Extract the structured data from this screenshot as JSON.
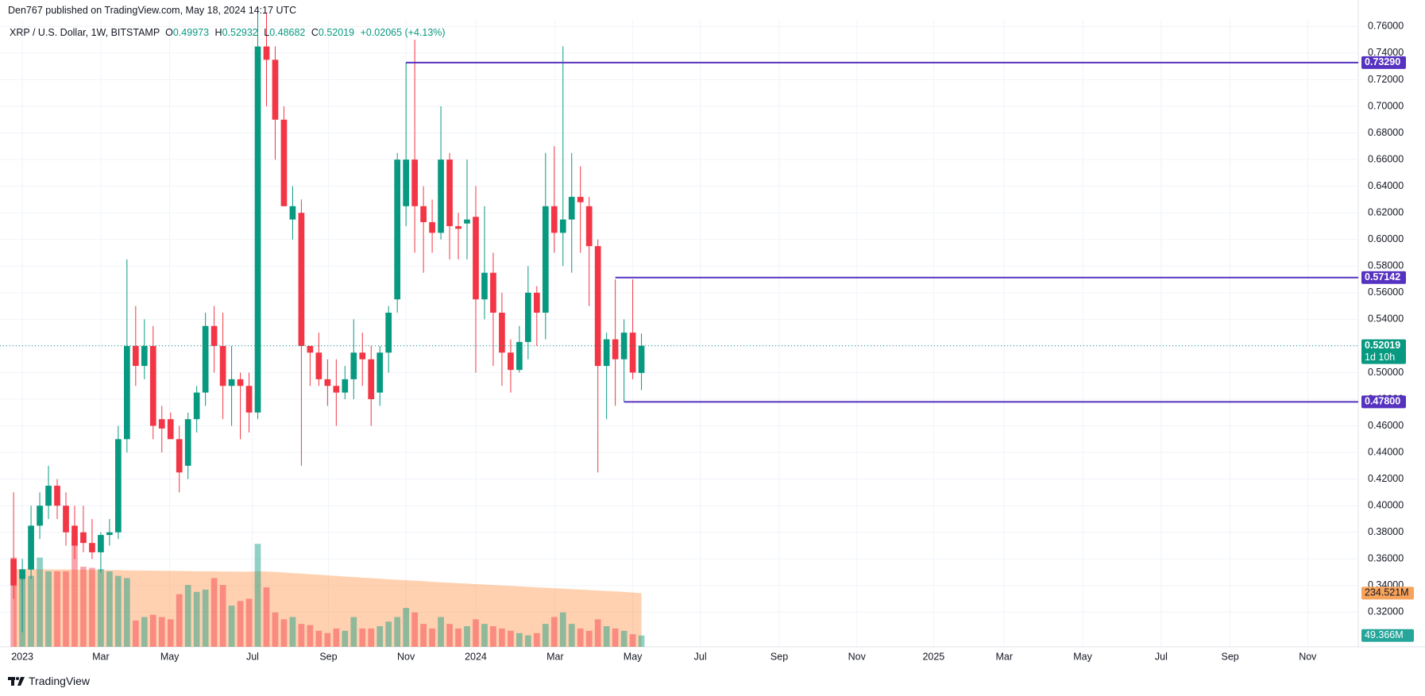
{
  "header": "Den767 published on TradingView.com, May 18, 2024 14:17 UTC",
  "footer": "TradingView",
  "chart_data": {
    "type": "candlestick",
    "symbol": "XRP / U.S. Dollar, 1W, BITSTAMP",
    "legend_keys": [
      "O",
      "H",
      "L",
      "C"
    ],
    "change": "+0.02065 (+4.13%)",
    "countdown": "1d 10h",
    "up_color": "#089981",
    "down_color": "#f23645",
    "level_color": "#5632c0",
    "grid": true,
    "xlim": [
      -1.56,
      154.2
    ],
    "xticks": [
      {
        "value": 1,
        "label": "2023"
      },
      {
        "value": 10,
        "label": "Mar"
      },
      {
        "value": 17.9,
        "label": "May"
      },
      {
        "value": 27.4,
        "label": "Jul"
      },
      {
        "value": 36.1,
        "label": "Sep"
      },
      {
        "value": 45,
        "label": "Nov"
      },
      {
        "value": 53,
        "label": "2024"
      },
      {
        "value": 62.1,
        "label": "Mar"
      },
      {
        "value": 71,
        "label": "May"
      },
      {
        "value": 78.75,
        "label": "Jul"
      },
      {
        "value": 87.8,
        "label": "Sep"
      },
      {
        "value": 96.7,
        "label": "Nov"
      },
      {
        "value": 105.5,
        "label": "2025"
      },
      {
        "value": 113.6,
        "label": "Mar"
      },
      {
        "value": 122.6,
        "label": "May"
      },
      {
        "value": 131.6,
        "label": "Jul"
      },
      {
        "value": 139.5,
        "label": "Sep"
      },
      {
        "value": 148.4,
        "label": "Nov"
      }
    ],
    "ylim": [
      0.294,
      0.765
    ],
    "yticks": [
      {
        "value": 0.32,
        "label": "0.32000"
      },
      {
        "value": 0.34,
        "label": "0.34000"
      },
      {
        "value": 0.36,
        "label": "0.36000"
      },
      {
        "value": 0.38,
        "label": "0.38000"
      },
      {
        "value": 0.4,
        "label": "0.40000"
      },
      {
        "value": 0.42,
        "label": "0.42000"
      },
      {
        "value": 0.44,
        "label": "0.44000"
      },
      {
        "value": 0.46,
        "label": "0.46000"
      },
      {
        "value": 0.48,
        "label": "0.48000"
      },
      {
        "value": 0.5,
        "label": "0.50000"
      },
      {
        "value": 0.52,
        "label": "0.52000"
      },
      {
        "value": 0.54,
        "label": "0.54000"
      },
      {
        "value": 0.56,
        "label": "0.56000"
      },
      {
        "value": 0.58,
        "label": "0.58000"
      },
      {
        "value": 0.6,
        "label": "0.60000"
      },
      {
        "value": 0.62,
        "label": "0.62000"
      },
      {
        "value": 0.64,
        "label": "0.64000"
      },
      {
        "value": 0.66,
        "label": "0.66000"
      },
      {
        "value": 0.68,
        "label": "0.68000"
      },
      {
        "value": 0.7,
        "label": "0.70000"
      },
      {
        "value": 0.72,
        "label": "0.72000"
      },
      {
        "value": 0.74,
        "label": "0.74000"
      },
      {
        "value": 0.76,
        "label": "0.76000"
      }
    ],
    "ohlc": [
      [
        0.36,
        0.41,
        0.33,
        0.34
      ],
      [
        0.345,
        0.36,
        0.305,
        0.352
      ],
      [
        0.352,
        0.4,
        0.345,
        0.385
      ],
      [
        0.385,
        0.41,
        0.375,
        0.4
      ],
      [
        0.4,
        0.43,
        0.39,
        0.415
      ],
      [
        0.415,
        0.42,
        0.39,
        0.4
      ],
      [
        0.4,
        0.41,
        0.37,
        0.38
      ],
      [
        0.385,
        0.4,
        0.36,
        0.37
      ],
      [
        0.38,
        0.4,
        0.365,
        0.372
      ],
      [
        0.372,
        0.39,
        0.36,
        0.365
      ],
      [
        0.365,
        0.38,
        0.35,
        0.378
      ],
      [
        0.378,
        0.39,
        0.37,
        0.38
      ],
      [
        0.38,
        0.46,
        0.375,
        0.45
      ],
      [
        0.45,
        0.585,
        0.44,
        0.52
      ],
      [
        0.52,
        0.55,
        0.49,
        0.505
      ],
      [
        0.505,
        0.54,
        0.495,
        0.52
      ],
      [
        0.52,
        0.535,
        0.45,
        0.46
      ],
      [
        0.465,
        0.475,
        0.44,
        0.458
      ],
      [
        0.465,
        0.47,
        0.45,
        0.45
      ],
      [
        0.45,
        0.46,
        0.41,
        0.425
      ],
      [
        0.43,
        0.47,
        0.42,
        0.465
      ],
      [
        0.465,
        0.49,
        0.455,
        0.485
      ],
      [
        0.485,
        0.545,
        0.475,
        0.535
      ],
      [
        0.535,
        0.55,
        0.5,
        0.52
      ],
      [
        0.52,
        0.545,
        0.465,
        0.49
      ],
      [
        0.49,
        0.52,
        0.46,
        0.495
      ],
      [
        0.495,
        0.5,
        0.45,
        0.49
      ],
      [
        0.49,
        0.5,
        0.455,
        0.47
      ],
      [
        0.47,
        0.775,
        0.465,
        0.745
      ],
      [
        0.745,
        0.77,
        0.7,
        0.735
      ],
      [
        0.735,
        0.745,
        0.66,
        0.69
      ],
      [
        0.69,
        0.7,
        0.625,
        0.625
      ],
      [
        0.615,
        0.64,
        0.6,
        0.625
      ],
      [
        0.62,
        0.63,
        0.43,
        0.52
      ],
      [
        0.52,
        0.52,
        0.49,
        0.515
      ],
      [
        0.515,
        0.53,
        0.49,
        0.495
      ],
      [
        0.495,
        0.51,
        0.475,
        0.49
      ],
      [
        0.49,
        0.51,
        0.46,
        0.485
      ],
      [
        0.485,
        0.505,
        0.48,
        0.495
      ],
      [
        0.495,
        0.54,
        0.48,
        0.515
      ],
      [
        0.515,
        0.53,
        0.49,
        0.51
      ],
      [
        0.51,
        0.52,
        0.46,
        0.48
      ],
      [
        0.485,
        0.52,
        0.475,
        0.515
      ],
      [
        0.515,
        0.55,
        0.5,
        0.545
      ],
      [
        0.555,
        0.665,
        0.545,
        0.66
      ],
      [
        0.625,
        0.733,
        0.61,
        0.66
      ],
      [
        0.66,
        0.75,
        0.59,
        0.625
      ],
      [
        0.625,
        0.64,
        0.575,
        0.613
      ],
      [
        0.613,
        0.63,
        0.59,
        0.605
      ],
      [
        0.605,
        0.7,
        0.6,
        0.66
      ],
      [
        0.66,
        0.665,
        0.585,
        0.61
      ],
      [
        0.61,
        0.62,
        0.585,
        0.608
      ],
      [
        0.612,
        0.66,
        0.585,
        0.615
      ],
      [
        0.617,
        0.64,
        0.5,
        0.555
      ],
      [
        0.555,
        0.625,
        0.54,
        0.575
      ],
      [
        0.575,
        0.59,
        0.505,
        0.545
      ],
      [
        0.545,
        0.56,
        0.49,
        0.515
      ],
      [
        0.515,
        0.525,
        0.485,
        0.502
      ],
      [
        0.502,
        0.535,
        0.5,
        0.523
      ],
      [
        0.523,
        0.58,
        0.51,
        0.56
      ],
      [
        0.56,
        0.565,
        0.52,
        0.545
      ],
      [
        0.545,
        0.665,
        0.525,
        0.625
      ],
      [
        0.625,
        0.67,
        0.59,
        0.605
      ],
      [
        0.605,
        0.745,
        0.58,
        0.615
      ],
      [
        0.615,
        0.665,
        0.575,
        0.632
      ],
      [
        0.632,
        0.655,
        0.59,
        0.628
      ],
      [
        0.625,
        0.632,
        0.55,
        0.595
      ],
      [
        0.595,
        0.6,
        0.425,
        0.505
      ],
      [
        0.505,
        0.53,
        0.465,
        0.525
      ],
      [
        0.525,
        0.57,
        0.475,
        0.51
      ],
      [
        0.51,
        0.54,
        0.478,
        0.53
      ],
      [
        0.53,
        0.57,
        0.495,
        0.5
      ],
      [
        0.49973,
        0.52932,
        0.48682,
        0.52019
      ]
    ],
    "vlim": [
      0,
      600
    ],
    "volume": [
      390,
      340,
      310,
      390,
      330,
      330,
      330,
      477,
      350,
      345,
      340,
      330,
      310,
      300,
      115,
      130,
      140,
      130,
      120,
      230,
      270,
      240,
      250,
      300,
      270,
      180,
      200,
      210,
      450,
      260,
      150,
      120,
      130,
      100,
      95,
      70,
      60,
      80,
      70,
      130,
      80,
      80,
      90,
      110,
      130,
      170,
      150,
      100,
      80,
      130,
      100,
      80,
      90,
      120,
      100,
      90,
      80,
      70,
      60,
      50,
      60,
      100,
      130,
      150,
      100,
      80,
      70,
      120,
      90,
      80,
      70,
      55,
      49.366
    ],
    "volume_label": "49.366M",
    "volume_ma": [
      340,
      340,
      339,
      339,
      338,
      338,
      338,
      337,
      337,
      336,
      336,
      335,
      335,
      334,
      334,
      333,
      333,
      332,
      332,
      331,
      331,
      330,
      330,
      330,
      329,
      329,
      328,
      328,
      330,
      329,
      327,
      325,
      322,
      320,
      317,
      315,
      312,
      310,
      307,
      305,
      302,
      300,
      298,
      295,
      293,
      291,
      289,
      287,
      284,
      282,
      280,
      278,
      276,
      274,
      272,
      270,
      268,
      266,
      264,
      262,
      260,
      258,
      256,
      254,
      252,
      250,
      248,
      246,
      244,
      242,
      240,
      237,
      234.521
    ],
    "volume_ma_label": "234.521M",
    "levels": [
      {
        "value": 0.7329,
        "label": "0.73290",
        "start": 45
      },
      {
        "value": 0.57142,
        "label": "0.57142",
        "start": 69
      },
      {
        "value": 0.478,
        "label": "0.47800",
        "start": 70
      }
    ]
  }
}
